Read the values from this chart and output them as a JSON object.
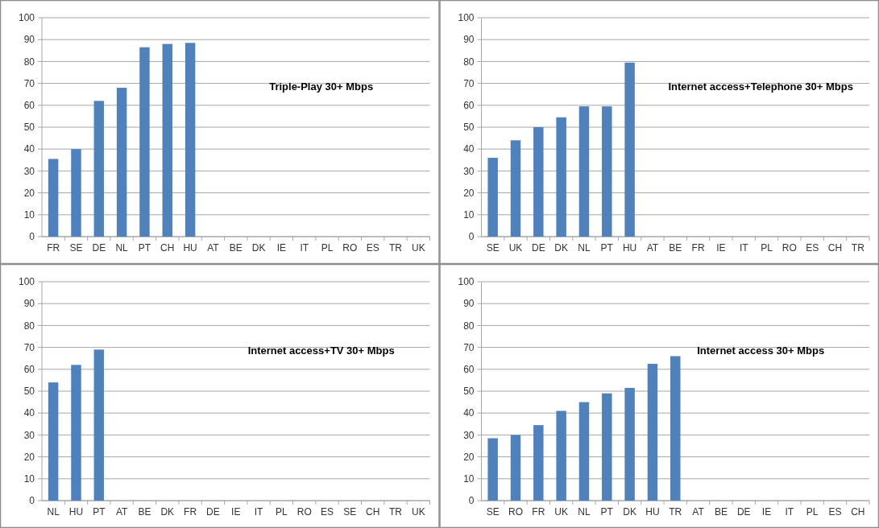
{
  "chart_data": [
    {
      "type": "bar",
      "title": "Triple-Play 30+ Mbps",
      "categories": [
        "FR",
        "SE",
        "DE",
        "NL",
        "PT",
        "CH",
        "HU",
        "AT",
        "BE",
        "DK",
        "IE",
        "IT",
        "PL",
        "RO",
        "ES",
        "TR",
        "UK"
      ],
      "values": [
        35.5,
        40,
        62,
        68,
        86.5,
        88,
        88.5,
        null,
        null,
        null,
        null,
        null,
        null,
        null,
        null,
        null,
        null
      ],
      "color": "#4f81bd",
      "ylim": [
        0,
        100
      ],
      "yticks": [
        0,
        10,
        20,
        30,
        40,
        50,
        60,
        70,
        80,
        90,
        100
      ],
      "grid": "y"
    },
    {
      "type": "bar",
      "title": "Internet access+Telephone  30+ Mbps",
      "categories": [
        "SE",
        "UK",
        "DE",
        "DK",
        "NL",
        "PT",
        "HU",
        "AT",
        "BE",
        "FR",
        "IE",
        "IT",
        "PL",
        "RO",
        "ES",
        "CH",
        "TR"
      ],
      "values": [
        36,
        44,
        50,
        54.5,
        59.5,
        59.5,
        79.5,
        null,
        null,
        null,
        null,
        null,
        null,
        null,
        null,
        null,
        null
      ],
      "color": "#4f81bd",
      "ylim": [
        0,
        100
      ],
      "yticks": [
        0,
        10,
        20,
        30,
        40,
        50,
        60,
        70,
        80,
        90,
        100
      ],
      "grid": "y"
    },
    {
      "type": "bar",
      "title": "Internet access+TV  30+ Mbps",
      "categories": [
        "NL",
        "HU",
        "PT",
        "AT",
        "BE",
        "DK",
        "FR",
        "DE",
        "IE",
        "IT",
        "PL",
        "RO",
        "ES",
        "SE",
        "CH",
        "TR",
        "UK"
      ],
      "values": [
        54,
        62,
        69,
        null,
        null,
        null,
        null,
        null,
        null,
        null,
        null,
        null,
        null,
        null,
        null,
        null,
        null
      ],
      "color": "#4f81bd",
      "ylim": [
        0,
        100
      ],
      "yticks": [
        0,
        10,
        20,
        30,
        40,
        50,
        60,
        70,
        80,
        90,
        100
      ],
      "grid": "y"
    },
    {
      "type": "bar",
      "title": "Internet access  30+ Mbps",
      "categories": [
        "SE",
        "RO",
        "FR",
        "UK",
        "NL",
        "PT",
        "DK",
        "HU",
        "TR",
        "AT",
        "BE",
        "DE",
        "IE",
        "IT",
        "PL",
        "ES",
        "CH"
      ],
      "values": [
        28.5,
        30,
        34.5,
        41,
        45,
        49,
        51.5,
        62.5,
        66,
        null,
        null,
        null,
        null,
        null,
        null,
        null,
        null
      ],
      "color": "#4f81bd",
      "ylim": [
        0,
        100
      ],
      "yticks": [
        0,
        10,
        20,
        30,
        40,
        50,
        60,
        70,
        80,
        90,
        100
      ],
      "grid": "y"
    }
  ]
}
